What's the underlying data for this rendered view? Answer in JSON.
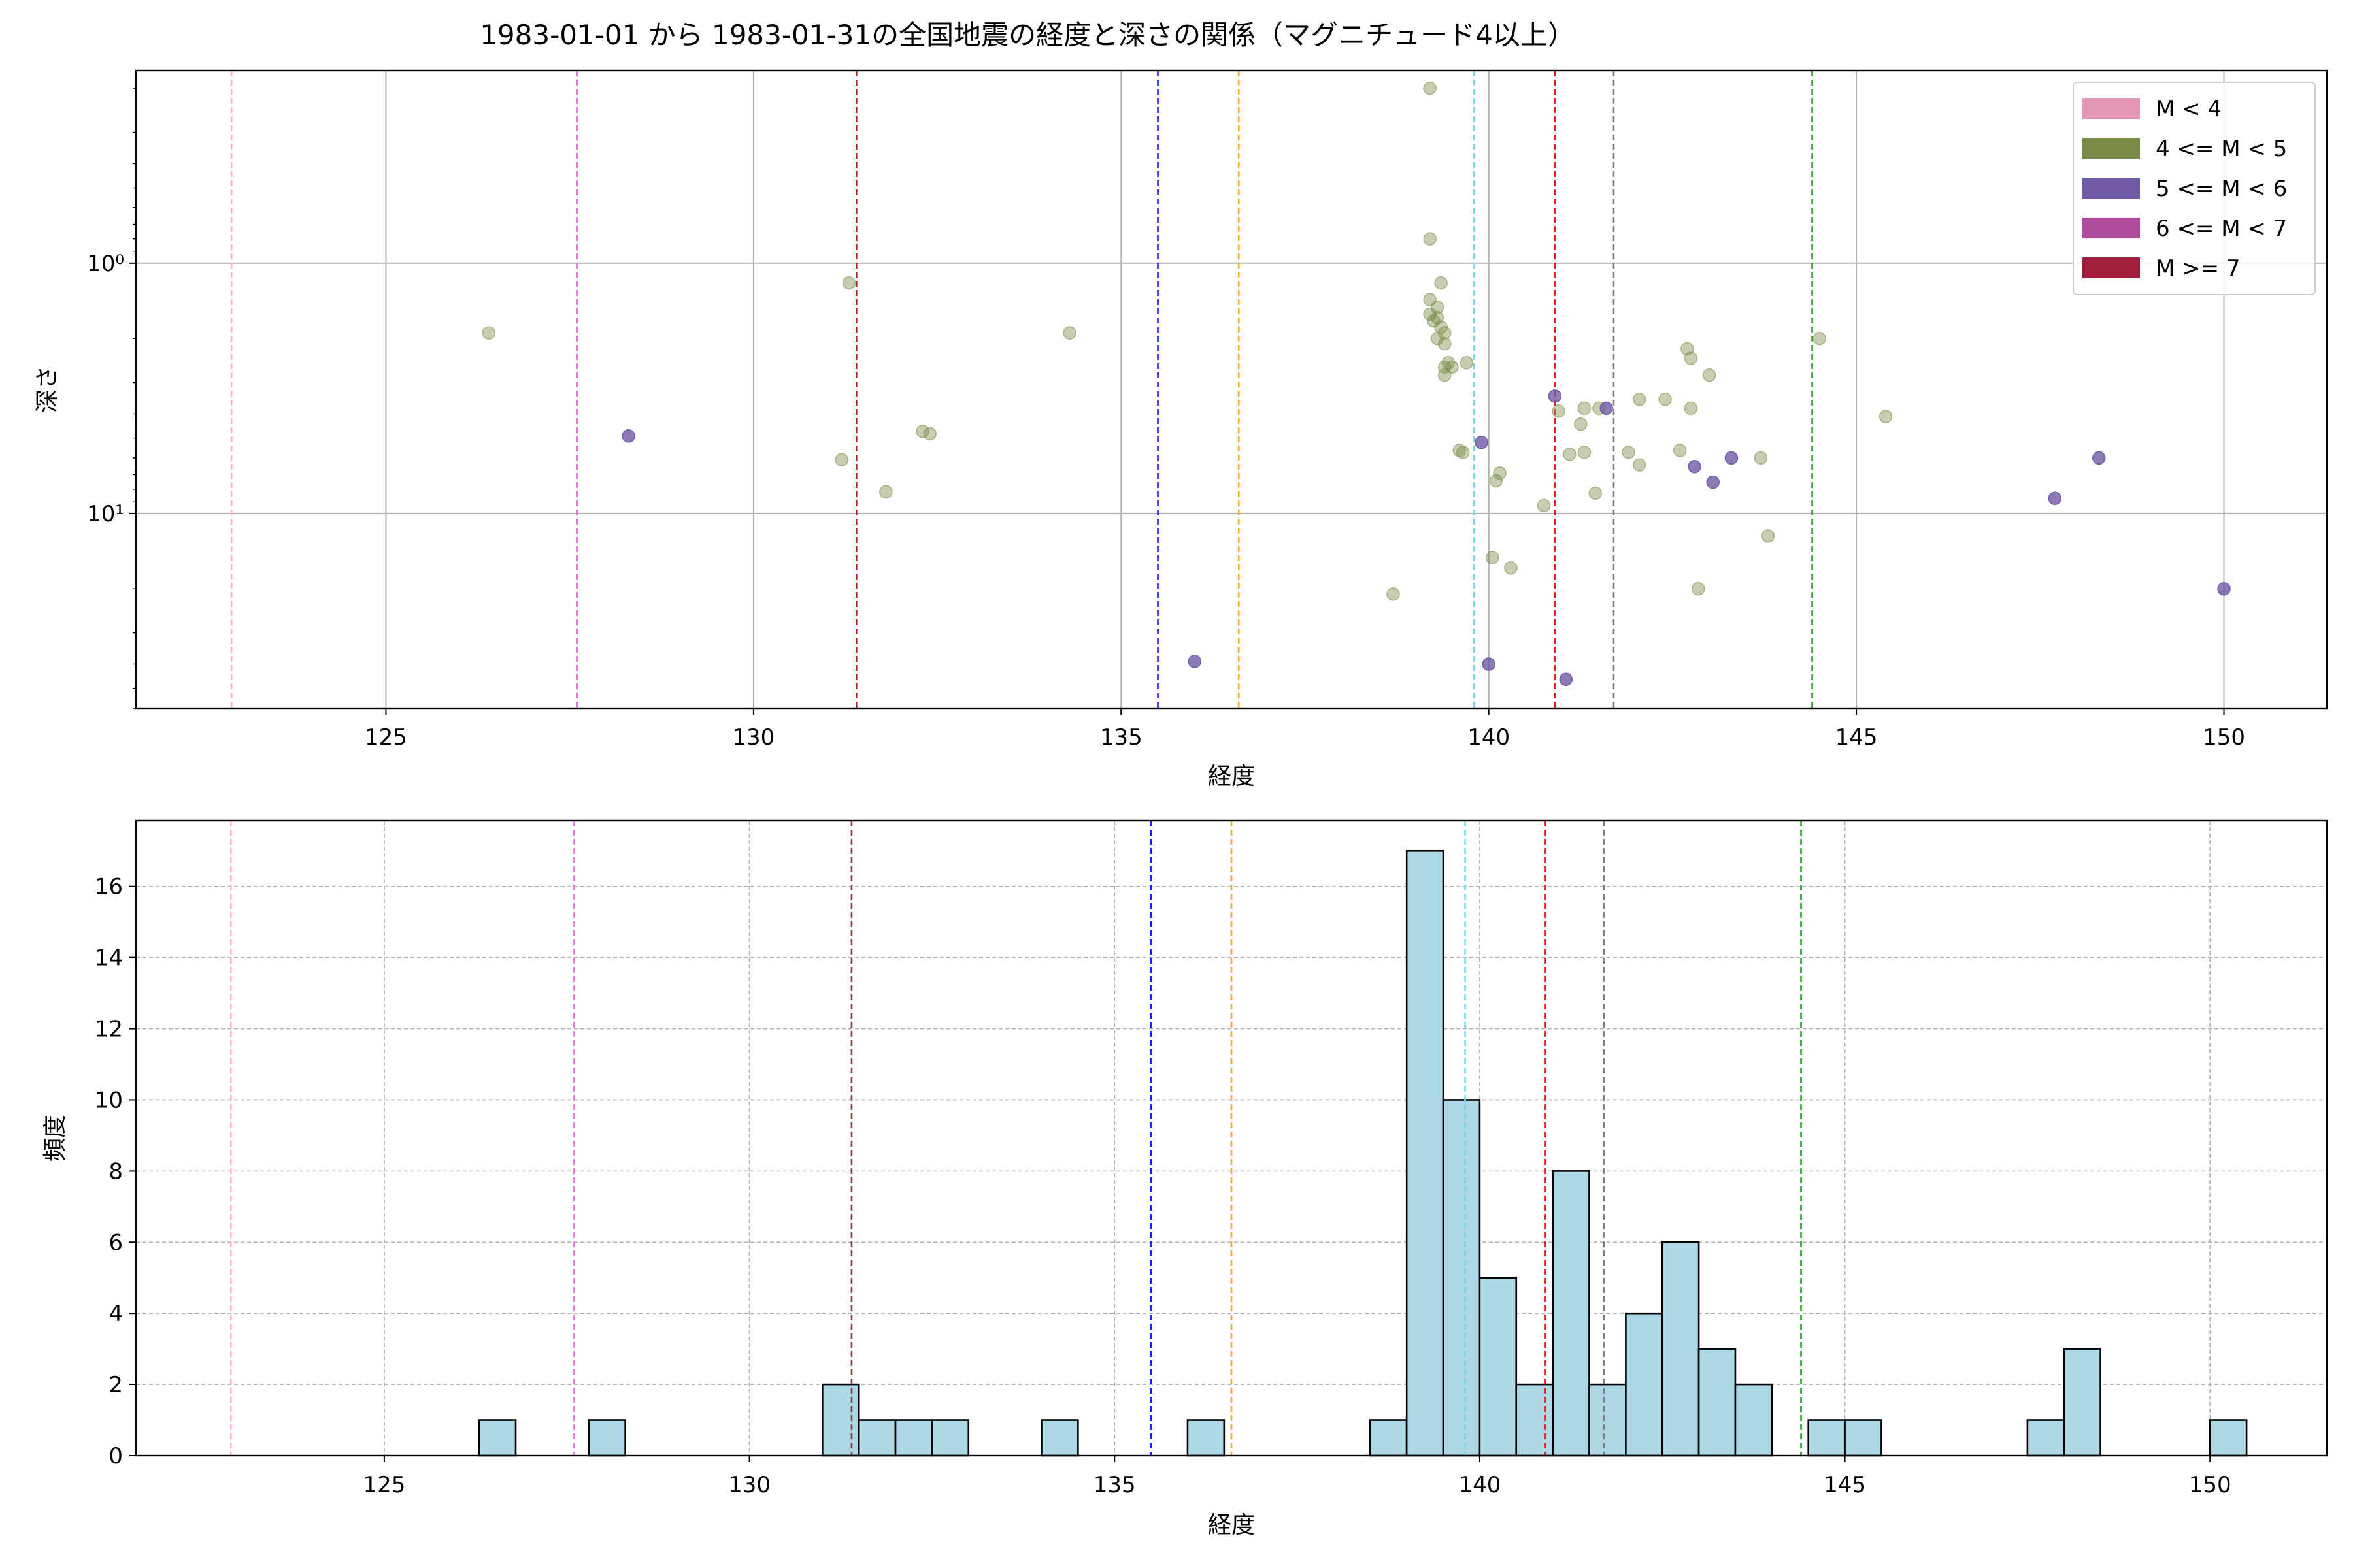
{
  "chart_data": [
    {
      "type": "scatter",
      "title": "1983-01-01 から 1983-01-31の全国地震の経度と深さの関係（マグニチュード4以上）",
      "xlabel": "経度",
      "ylabel": "深さ",
      "xlim": [
        121.6,
        151.4
      ],
      "ylim": [
        0.17,
        60
      ],
      "yscale": "log",
      "y_inverted": true,
      "grid": true,
      "xticks": [
        125,
        130,
        135,
        140,
        145,
        150
      ],
      "yticks": [
        {
          "value": 1,
          "label": "10⁰"
        },
        {
          "value": 10,
          "label": "10¹"
        }
      ],
      "legend": {
        "position": "top-right",
        "entries": [
          {
            "label": "M < 4",
            "color": "#e497b4"
          },
          {
            "label": "4 <= M < 5",
            "color": "#7a8b45"
          },
          {
            "label": "5 <= M < 6",
            "color": "#6f5aa5"
          },
          {
            "label": "6 <= M < 7",
            "color": "#b04e9e"
          },
          {
            "label": "M >= 7",
            "color": "#a11e3e"
          }
        ]
      },
      "vlines": [
        {
          "x": 122.9,
          "color": "#f4b8cc"
        },
        {
          "x": 127.6,
          "color": "#e07ad6"
        },
        {
          "x": 131.4,
          "color": "#a52a2a"
        },
        {
          "x": 135.5,
          "color": "#1f1fe0"
        },
        {
          "x": 136.6,
          "color": "#f5a623"
        },
        {
          "x": 139.8,
          "color": "#7fd3dc"
        },
        {
          "x": 140.9,
          "color": "#e61e1e"
        },
        {
          "x": 141.7,
          "color": "#808080"
        },
        {
          "x": 144.4,
          "color": "#2a9a2a"
        }
      ],
      "series": [
        {
          "name": "4 <= M < 5",
          "color": "#7a8b45",
          "points": [
            {
              "x": 126.4,
              "y": 1.9
            },
            {
              "x": 131.2,
              "y": 6.1
            },
            {
              "x": 131.3,
              "y": 1.2
            },
            {
              "x": 131.8,
              "y": 8.2
            },
            {
              "x": 132.3,
              "y": 4.7
            },
            {
              "x": 132.4,
              "y": 4.8
            },
            {
              "x": 134.3,
              "y": 1.9
            },
            {
              "x": 138.7,
              "y": 21
            },
            {
              "x": 139.2,
              "y": 0.2
            },
            {
              "x": 139.2,
              "y": 0.8
            },
            {
              "x": 139.2,
              "y": 1.4
            },
            {
              "x": 139.2,
              "y": 1.6
            },
            {
              "x": 139.25,
              "y": 1.7
            },
            {
              "x": 139.3,
              "y": 1.5
            },
            {
              "x": 139.3,
              "y": 1.65
            },
            {
              "x": 139.3,
              "y": 2.0
            },
            {
              "x": 139.35,
              "y": 1.2
            },
            {
              "x": 139.35,
              "y": 1.8
            },
            {
              "x": 139.4,
              "y": 1.9
            },
            {
              "x": 139.4,
              "y": 2.6
            },
            {
              "x": 139.4,
              "y": 2.8
            },
            {
              "x": 139.4,
              "y": 2.1
            },
            {
              "x": 139.45,
              "y": 2.5
            },
            {
              "x": 139.5,
              "y": 2.6
            },
            {
              "x": 139.6,
              "y": 5.6
            },
            {
              "x": 139.65,
              "y": 5.7
            },
            {
              "x": 139.7,
              "y": 2.5
            },
            {
              "x": 140.05,
              "y": 15
            },
            {
              "x": 140.1,
              "y": 7.4
            },
            {
              "x": 140.15,
              "y": 6.9
            },
            {
              "x": 140.3,
              "y": 16.5
            },
            {
              "x": 140.75,
              "y": 9.3
            },
            {
              "x": 140.95,
              "y": 3.9
            },
            {
              "x": 141.1,
              "y": 5.8
            },
            {
              "x": 141.25,
              "y": 4.4
            },
            {
              "x": 141.3,
              "y": 3.8
            },
            {
              "x": 141.3,
              "y": 5.7
            },
            {
              "x": 141.45,
              "y": 8.3
            },
            {
              "x": 141.5,
              "y": 3.8
            },
            {
              "x": 141.9,
              "y": 5.7
            },
            {
              "x": 142.05,
              "y": 6.4
            },
            {
              "x": 142.05,
              "y": 3.5
            },
            {
              "x": 142.4,
              "y": 3.5
            },
            {
              "x": 142.6,
              "y": 5.6
            },
            {
              "x": 142.7,
              "y": 2.2
            },
            {
              "x": 142.75,
              "y": 2.4
            },
            {
              "x": 142.75,
              "y": 3.8
            },
            {
              "x": 142.85,
              "y": 20
            },
            {
              "x": 143.0,
              "y": 2.8
            },
            {
              "x": 143.7,
              "y": 6.0
            },
            {
              "x": 143.8,
              "y": 12.3
            },
            {
              "x": 144.5,
              "y": 2.0
            },
            {
              "x": 145.4,
              "y": 4.1
            }
          ]
        },
        {
          "name": "5 <= M < 6",
          "color": "#6f5aa5",
          "points": [
            {
              "x": 128.3,
              "y": 4.9
            },
            {
              "x": 136.0,
              "y": 39
            },
            {
              "x": 139.9,
              "y": 5.2
            },
            {
              "x": 140.0,
              "y": 40
            },
            {
              "x": 140.9,
              "y": 3.4
            },
            {
              "x": 141.05,
              "y": 46
            },
            {
              "x": 141.6,
              "y": 3.8
            },
            {
              "x": 142.8,
              "y": 6.5
            },
            {
              "x": 143.05,
              "y": 7.5
            },
            {
              "x": 143.3,
              "y": 6.0
            },
            {
              "x": 147.7,
              "y": 8.7
            },
            {
              "x": 148.3,
              "y": 6.0
            },
            {
              "x": 150.0,
              "y": 20
            }
          ]
        }
      ]
    },
    {
      "type": "bar",
      "subtype": "histogram",
      "xlabel": "経度",
      "ylabel": "頻度",
      "xlim": [
        121.6,
        151.6
      ],
      "ylim": [
        0,
        17.85
      ],
      "grid": true,
      "grid_style": "dashed",
      "xticks": [
        125,
        130,
        135,
        140,
        145,
        150
      ],
      "yticks": [
        0,
        2,
        4,
        6,
        8,
        10,
        12,
        14,
        16
      ],
      "bin_width": 0.5,
      "bar_color": "#add8e6",
      "edge_color": "#000000",
      "bins": [
        {
          "start": 126.3,
          "count": 1
        },
        {
          "start": 127.8,
          "count": 1
        },
        {
          "start": 131.0,
          "count": 2
        },
        {
          "start": 131.5,
          "count": 1
        },
        {
          "start": 132.0,
          "count": 1
        },
        {
          "start": 132.5,
          "count": 1
        },
        {
          "start": 134.0,
          "count": 1
        },
        {
          "start": 136.0,
          "count": 1
        },
        {
          "start": 138.5,
          "count": 1
        },
        {
          "start": 139.0,
          "count": 17
        },
        {
          "start": 139.5,
          "count": 10
        },
        {
          "start": 140.0,
          "count": 5
        },
        {
          "start": 140.5,
          "count": 2
        },
        {
          "start": 141.0,
          "count": 8
        },
        {
          "start": 141.5,
          "count": 2
        },
        {
          "start": 142.0,
          "count": 4
        },
        {
          "start": 142.5,
          "count": 6
        },
        {
          "start": 143.0,
          "count": 3
        },
        {
          "start": 143.5,
          "count": 2
        },
        {
          "start": 144.5,
          "count": 1
        },
        {
          "start": 145.0,
          "count": 1
        },
        {
          "start": 147.5,
          "count": 1
        },
        {
          "start": 148.0,
          "count": 3
        },
        {
          "start": 150.0,
          "count": 1
        }
      ],
      "vlines": [
        {
          "x": 122.9,
          "color": "#f4b8cc"
        },
        {
          "x": 127.6,
          "color": "#e07ad6"
        },
        {
          "x": 131.4,
          "color": "#a52a2a"
        },
        {
          "x": 135.5,
          "color": "#1f1fe0"
        },
        {
          "x": 136.6,
          "color": "#f5a623"
        },
        {
          "x": 139.8,
          "color": "#7fd3dc"
        },
        {
          "x": 140.9,
          "color": "#e61e1e"
        },
        {
          "x": 141.7,
          "color": "#808080"
        },
        {
          "x": 144.4,
          "color": "#2a9a2a"
        }
      ]
    }
  ]
}
